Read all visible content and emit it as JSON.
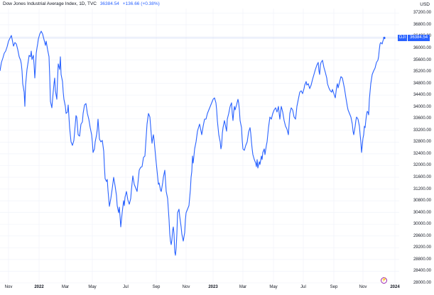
{
  "header": {
    "title": "Dow Jones Industrial Average Index, 1D, TVC",
    "last_price": "36384.54",
    "change": "+136.66 (+0.38%)",
    "currency": "USD"
  },
  "price_tag": {
    "symbol": "DJI",
    "value": "36384.54"
  },
  "colors": {
    "line": "#2962ff",
    "grid": "#f0f3fa",
    "price_line": "#c7d4f5",
    "event": "#9c27b0"
  },
  "event_marker": {
    "icon": "lightning-icon",
    "glyph": "⚡"
  },
  "chart_data": {
    "type": "line",
    "title": "Dow Jones Industrial Average Index, 1D, TVC",
    "xlabel": "",
    "ylabel": "USD",
    "ylim": [
      27800,
      37400
    ],
    "grid": true,
    "legend": "none",
    "y_ticks": [
      "37200.00",
      "36800.00",
      "36400.00",
      "36000.00",
      "35600.00",
      "35200.00",
      "34800.00",
      "34400.00",
      "34000.00",
      "33600.00",
      "33200.00",
      "32800.00",
      "32400.00",
      "32000.00",
      "31600.00",
      "31200.00",
      "30800.00",
      "30400.00",
      "30000.00",
      "29600.00",
      "29200.00",
      "28800.00",
      "28400.00",
      "28000.00"
    ],
    "x_ticks": [
      {
        "label": "Nov",
        "year": false
      },
      {
        "label": "2022",
        "year": true
      },
      {
        "label": "Mar",
        "year": false
      },
      {
        "label": "May",
        "year": false
      },
      {
        "label": "Jul",
        "year": false
      },
      {
        "label": "Sep",
        "year": false
      },
      {
        "label": "Nov",
        "year": false
      },
      {
        "label": "2023",
        "year": true
      },
      {
        "label": "Mar",
        "year": false
      },
      {
        "label": "May",
        "year": false
      },
      {
        "label": "Jul",
        "year": false
      },
      {
        "label": "Sep",
        "year": false
      },
      {
        "label": "Nov",
        "year": false
      },
      {
        "label": "2024",
        "year": true
      }
    ],
    "series": [
      {
        "name": "DJI",
        "x": [
          "2021-10",
          "2021-11",
          "2021-11-25",
          "2021-12",
          "2022-01-04",
          "2022-01-25",
          "2022-02",
          "2022-03-08",
          "2022-03-29",
          "2022-04-20",
          "2022-05-20",
          "2022-06-01",
          "2022-06-17",
          "2022-07",
          "2022-08-16",
          "2022-09-13",
          "2022-09-30",
          "2022-10-14",
          "2022-11",
          "2022-11-30",
          "2022-12-13",
          "2022-12-28",
          "2023-01",
          "2023-02",
          "2023-03-15",
          "2023-04",
          "2023-05-31",
          "2023-06",
          "2023-07-31",
          "2023-08",
          "2023-09",
          "2023-10-27",
          "2023-11",
          "2023-12-13"
        ],
        "values": [
          34600,
          36300,
          34900,
          36100,
          36800,
          34000,
          35000,
          32600,
          35200,
          34900,
          31260,
          33200,
          29900,
          31700,
          34150,
          31100,
          28700,
          29600,
          33900,
          34600,
          34100,
          32900,
          34200,
          33700,
          31900,
          34000,
          32900,
          34400,
          35600,
          34600,
          33500,
          32400,
          35000,
          36384
        ]
      }
    ]
  }
}
